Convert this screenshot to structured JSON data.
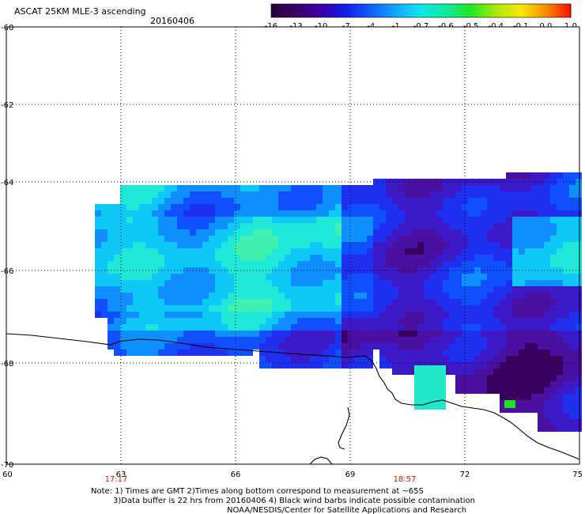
{
  "title": "ASCAT 25KM MLE-3 ascending",
  "date": "20160406",
  "colorbar": {
    "labels": [
      "-16",
      "-13",
      "-10",
      "-7",
      "-4",
      "-1",
      "-0.7",
      "-0.6",
      "-0.5",
      "-0.4",
      "-0.1",
      "0.0",
      "1.0"
    ],
    "colors": [
      "#2a0038",
      "#3c006a",
      "#3a00a8",
      "#1020e8",
      "#1060ff",
      "#10a8ff",
      "#10e8e8",
      "#10e8a0",
      "#20e820",
      "#a8e810",
      "#f8e800",
      "#f89000",
      "#f81000"
    ]
  },
  "y_axis_labels": [
    "-60",
    "-62",
    "-64",
    "-66",
    "-68",
    "-70"
  ],
  "x_axis_labels": [
    "60",
    "63",
    "66",
    "69",
    "72",
    "75"
  ],
  "time_labels": [
    "17:17",
    "18:57"
  ],
  "notes": [
    "Note: 1) Times are GMT 2)Times along bottom correspond to measurement at ~65S",
    "3)Data buffer is 22 hrs from 20160406 4) Black wind barbs indicate possible contamination",
    "NOAA/NESDIS/Center for Satellite Applications and Research"
  ],
  "map": {
    "lon_range": [
      60,
      75
    ],
    "lat_range": [
      -70,
      -60
    ],
    "lat_ticks": [
      -60,
      -62,
      -64,
      -66,
      -68,
      -70
    ],
    "lon_ticks": [
      60,
      63,
      66,
      69,
      72,
      75
    ],
    "grid": "dotted",
    "coastline_color": "#000000"
  }
}
